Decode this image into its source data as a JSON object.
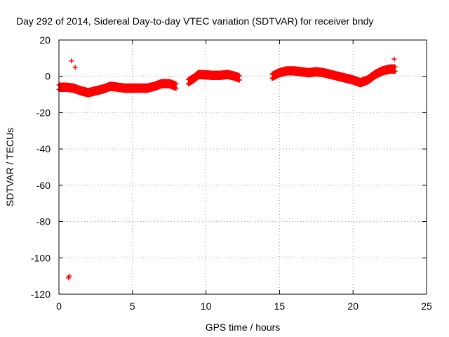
{
  "chart_data": {
    "type": "scatter",
    "title": "Day 292 of 2014, Sidereal Day-to-day VTEC variation (SDTVAR) for receiver bndy",
    "xlabel": "GPS time / hours",
    "ylabel": "SDTVAR / TECUs",
    "xlim": [
      0,
      25
    ],
    "ylim": [
      -120,
      20
    ],
    "xticks": [
      0,
      5,
      10,
      15,
      20,
      25
    ],
    "yticks": [
      -120,
      -100,
      -80,
      -60,
      -40,
      -20,
      0,
      20
    ],
    "grid": true,
    "marker": "+",
    "color": "#ff0000",
    "segments": [
      {
        "name": "seg-0-to-8",
        "x": [
          0.0,
          0.5,
          1.0,
          1.5,
          2.0,
          2.5,
          3.0,
          3.5,
          4.0,
          4.5,
          5.0,
          5.5,
          6.0,
          6.5,
          7.0,
          7.5,
          8.0
        ],
        "y": [
          -6,
          -6,
          -6.5,
          -8,
          -9,
          -8,
          -7,
          -5.5,
          -6,
          -6.5,
          -6.5,
          -6.5,
          -6.5,
          -5.5,
          -4,
          -4,
          -5.5
        ]
      },
      {
        "name": "seg-8-to-12",
        "x": [
          8.8,
          9.2,
          9.5,
          10.0,
          10.5,
          11.0,
          11.5,
          12.0,
          12.3
        ],
        "y": [
          -3,
          -1,
          1,
          0.8,
          0.5,
          0.6,
          1,
          0,
          -1
        ]
      },
      {
        "name": "seg-14-to-23",
        "x": [
          14.5,
          15.0,
          15.5,
          16.0,
          16.5,
          17.0,
          17.5,
          18.0,
          18.5,
          19.0,
          19.5,
          20.0,
          20.5,
          21.0,
          21.5,
          22.0,
          22.5,
          22.9
        ],
        "y": [
          0,
          2,
          3,
          3,
          2.5,
          2,
          2.5,
          2,
          1,
          0,
          -1,
          -2,
          -3.5,
          -2,
          1,
          3,
          4,
          4
        ]
      }
    ],
    "outliers": [
      {
        "x": 0.85,
        "y": 8.5
      },
      {
        "x": 1.1,
        "y": 5
      },
      {
        "x": 22.8,
        "y": 9.5
      },
      {
        "x": 0.65,
        "y": -111
      },
      {
        "x": 0.7,
        "y": -110
      }
    ]
  }
}
